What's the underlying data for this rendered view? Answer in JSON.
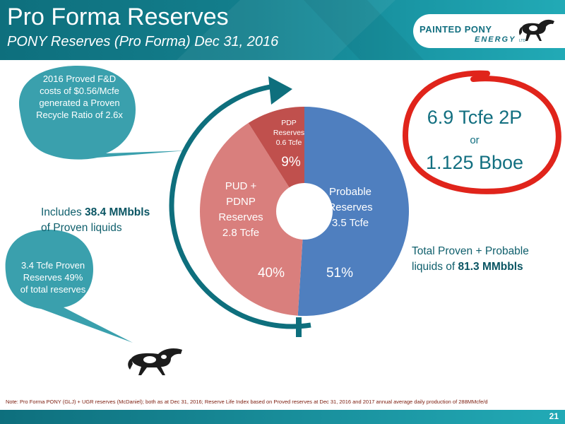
{
  "header": {
    "title": "Pro Forma Reserves",
    "subtitle": "PONY  Reserves (Pro Forma) Dec 31, 2016"
  },
  "logo": {
    "line1": "PAINTED PONY",
    "line2": "ENERGY",
    "line3": "LTD",
    "icon": "horse-logo-icon"
  },
  "callouts": {
    "fd_costs": "2016 Proved F&D costs of $0.56/Mcfe generated a Proven Recycle Ratio of 2.6x",
    "proven_reserves": "3.4 Tcfe Proven Reserves 49% of total reserves"
  },
  "proven_liquids": {
    "prefix": "Includes ",
    "value": "38.4 MMbbls",
    "suffix": "of Proven liquids"
  },
  "total_liquids": {
    "prefix": "Total Proven + Probable",
    "prefix2": "liquids of ",
    "value": "81.3 MMbbls"
  },
  "highlight": {
    "line1": "6.9 Tcfe 2P",
    "or": "or",
    "line2": "1.125 Bboe"
  },
  "note": "Note: Pro Forma PONY (GLJ) + UGR reserves (McDaniel); both as at Dec 31, 2016; Reserve Life Index based on Proved reserves at Dec 31, 2016 and 2017 annual average daily production of 288MMcfe/d",
  "page_number": "21",
  "colors": {
    "probable": "#4f7fbf",
    "pud": "#d97f7d",
    "pdp": "#c0504d",
    "teal": "#126f80",
    "callout": "#3aa0ad",
    "circle_red": "#e0241b"
  },
  "chart_data": {
    "type": "pie",
    "donut": true,
    "slices": [
      {
        "name": "Probable Reserves",
        "value": 3.5,
        "unit": "Tcfe",
        "percent": 51,
        "label_lines": [
          "Probable",
          "Reserves",
          "3.5 Tcfe"
        ],
        "pct_label": "51%",
        "color": "#4f7fbf"
      },
      {
        "name": "PUD + PDNP Reserves",
        "value": 2.8,
        "unit": "Tcfe",
        "percent": 40,
        "label_lines": [
          "PUD +",
          "PDNP",
          "Reserves",
          "2.8 Tcfe"
        ],
        "pct_label": "40%",
        "color": "#d97f7d"
      },
      {
        "name": "PDP Reserves",
        "value": 0.6,
        "unit": "Tcfe",
        "percent": 9,
        "label_lines": [
          "PDP",
          "Reserves",
          "0.6 Tcfe"
        ],
        "pct_label": "9%",
        "color": "#c0504d"
      }
    ]
  }
}
